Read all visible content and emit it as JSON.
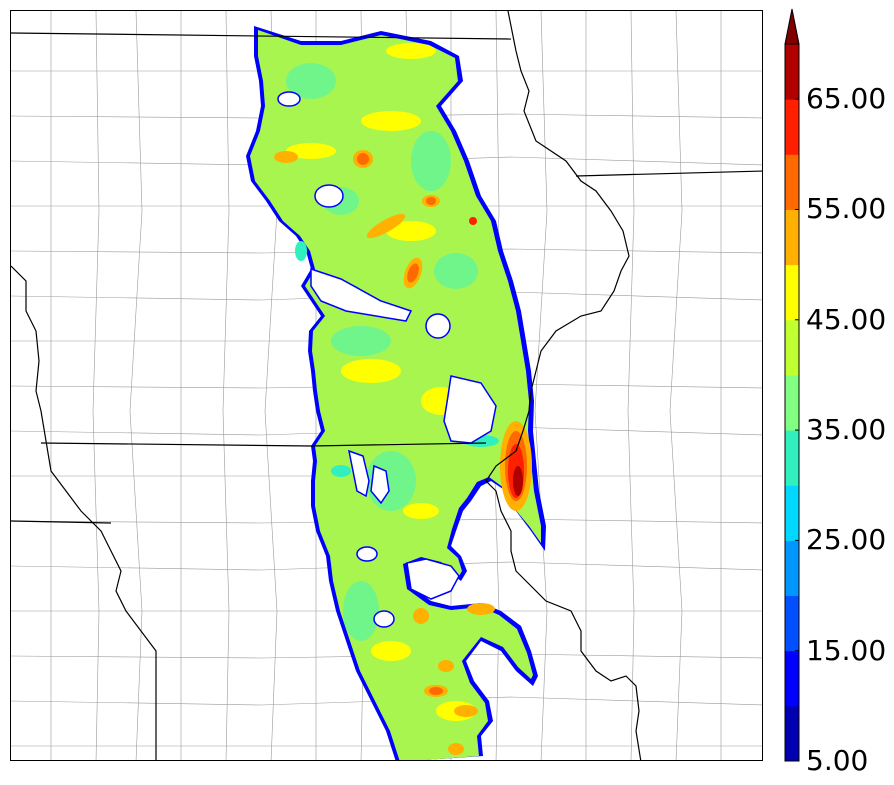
{
  "colorbar": {
    "levels": [
      5,
      10,
      15,
      20,
      25,
      30,
      35,
      40,
      45,
      50,
      55,
      60,
      65,
      70
    ],
    "colors": [
      "#0000b0",
      "#0000ff",
      "#0050ff",
      "#0096ff",
      "#00d8ff",
      "#30f0c0",
      "#80ff80",
      "#c0ff30",
      "#ffff00",
      "#ffb000",
      "#ff6a00",
      "#ff2000",
      "#b00000"
    ],
    "extend_color": "#800000",
    "tick_labels": [
      {
        "value": 5,
        "text": "5.00"
      },
      {
        "value": 15,
        "text": "15.00"
      },
      {
        "value": 25,
        "text": "25.00"
      },
      {
        "value": 35,
        "text": "35.00"
      },
      {
        "value": 45,
        "text": "45.00"
      },
      {
        "value": 55,
        "text": "55.00"
      },
      {
        "value": 65,
        "text": "65.00"
      }
    ],
    "extend": "max"
  },
  "map": {
    "background_color": "#ffffff",
    "state_line_color": "#000000",
    "county_line_color": "#9a9a9a",
    "outline_color": "#0000ff"
  }
}
